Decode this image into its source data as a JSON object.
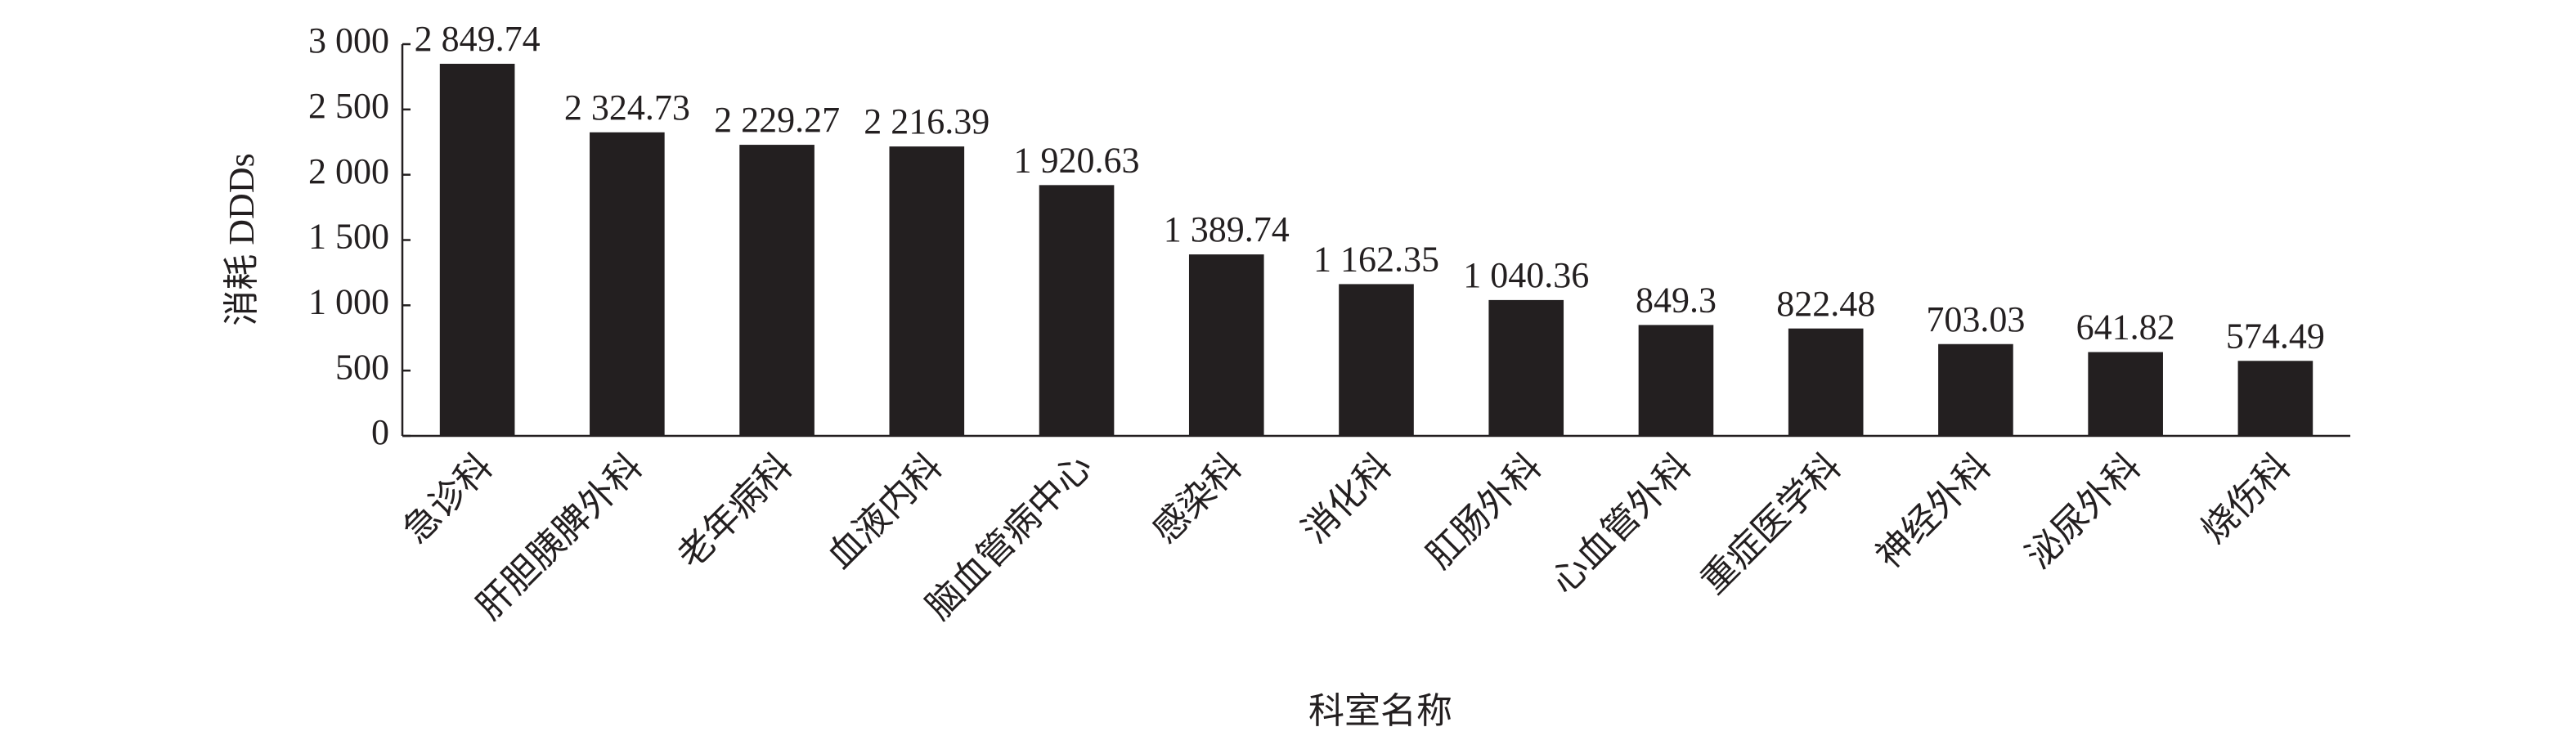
{
  "chart_data": {
    "type": "bar",
    "x_label": "科室名称",
    "y_label": "消耗 DDDs",
    "categories": [
      "急诊科",
      "肝胆胰脾外科",
      "老年病科",
      "血液内科",
      "脑血管病中心",
      "感染科",
      "消化科",
      "肛肠外科",
      "心血管外科",
      "重症医学科",
      "神经外科",
      "泌尿外科",
      "烧伤科"
    ],
    "values": [
      2849.74,
      2324.73,
      2229.27,
      2216.39,
      1920.63,
      1389.74,
      1162.35,
      1040.36,
      849.3,
      822.48,
      703.03,
      641.82,
      574.49
    ],
    "value_labels": [
      "2 849.74",
      "2 324.73",
      "2 229.27",
      "2 216.39",
      "1 920.63",
      "1 389.74",
      "1 162.35",
      "1 040.36",
      "849.3",
      "822.48",
      "703.03",
      "641.82",
      "574.49"
    ],
    "color": "#231f20",
    "ylim": [
      0,
      3000
    ],
    "yticks": [
      0,
      500,
      {
        "value": 1000,
        "label": "1 000"
      },
      {
        "value": 1500,
        "label": "1 500"
      },
      {
        "value": 2000,
        "label": "2 000"
      },
      {
        "value": 2500,
        "label": "2 500"
      },
      {
        "value": 3000,
        "label": "3 000"
      }
    ],
    "grid": false
  }
}
